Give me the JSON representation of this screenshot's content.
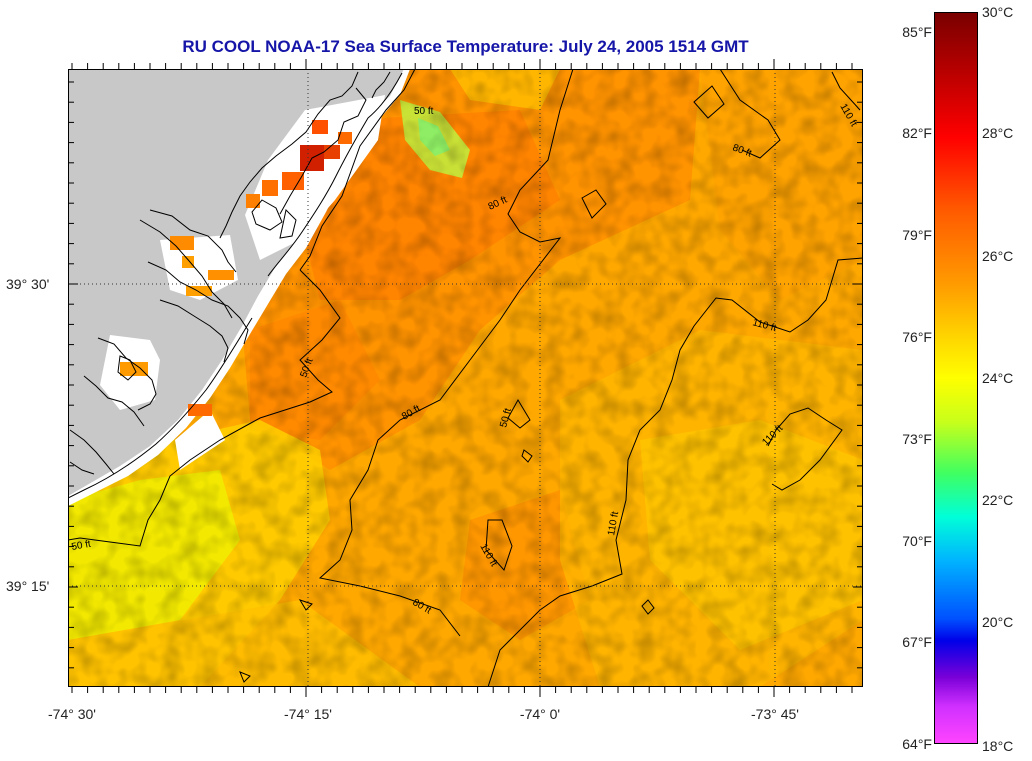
{
  "title": "RU COOL  NOAA-17  Sea Surface Temperature:  July 24, 2005 1514 GMT",
  "axes": {
    "longitude_labels": [
      "-74° 30'",
      "-74° 15'",
      "-74° 0'",
      "-73° 45'"
    ],
    "latitude_labels": [
      "39° 30'",
      "39° 15'"
    ]
  },
  "colorbar": {
    "fahrenheit_labels": [
      "85°F",
      "82°F",
      "79°F",
      "76°F",
      "73°F",
      "70°F",
      "67°F",
      "64°F"
    ],
    "celsius_labels": [
      "30°C",
      "28°C",
      "26°C",
      "24°C",
      "22°C",
      "20°C",
      "18°C"
    ],
    "range_c": [
      18,
      30
    ]
  },
  "bathymetry_labels": [
    "50 ft",
    "80 ft",
    "110 ft"
  ],
  "colors": {
    "title": "#1515a8",
    "land": "#c8c8c8",
    "no_data": "#ffffff",
    "sst_base": "#ffa500"
  }
}
